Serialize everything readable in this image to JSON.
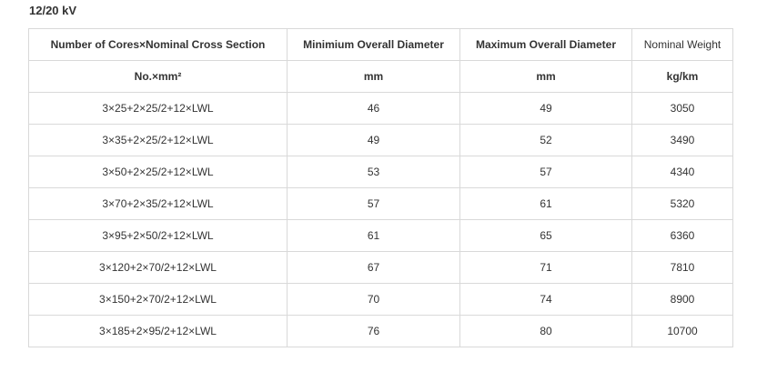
{
  "title": "12/20 kV",
  "table": {
    "headers": [
      "Number of Cores×Nominal Cross Section",
      "Minimium Overall Diameter",
      "Maximum Overall Diameter",
      "Nominal Weight"
    ],
    "units": [
      "No.×mm²",
      "mm",
      "mm",
      "kg/km"
    ],
    "rows": [
      [
        "3×25+2×25/2+12×LWL",
        "46",
        "49",
        "3050"
      ],
      [
        "3×35+2×25/2+12×LWL",
        "49",
        "52",
        "3490"
      ],
      [
        "3×50+2×25/2+12×LWL",
        "53",
        "57",
        "4340"
      ],
      [
        "3×70+2×35/2+12×LWL",
        "57",
        "61",
        "5320"
      ],
      [
        "3×95+2×50/2+12×LWL",
        "61",
        "65",
        "6360"
      ],
      [
        "3×120+2×70/2+12×LWL",
        "67",
        "71",
        "7810"
      ],
      [
        "3×150+2×70/2+12×LWL",
        "70",
        "74",
        "8900"
      ],
      [
        "3×185+2×95/2+12×LWL",
        "76",
        "80",
        "10700"
      ]
    ]
  }
}
